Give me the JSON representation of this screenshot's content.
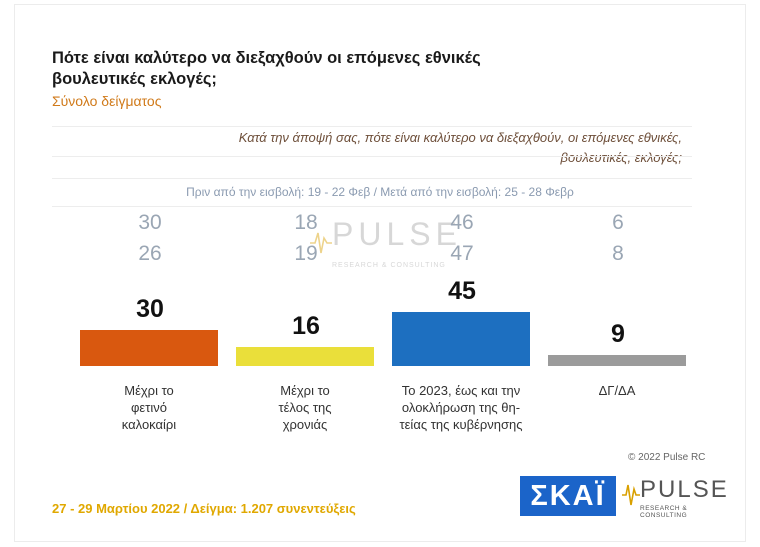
{
  "header": {
    "title": "Πότε είναι καλύτερο να διεξαχθούν οι επόμενες εθνικές βουλευτικές εκλογές;",
    "subtitle": "Σύνολο δείγματος"
  },
  "question": {
    "line1": "Κατά την άποψή σας, πότε είναι καλύτερο να διεξαχθούν, οι επόμενες εθνικές,",
    "line2": "βουλευτικές, εκλογές;"
  },
  "periods": {
    "before": "Πριν από την εισβολή: 19 - 22 Φεβ",
    "after": "Μετά από την εισβολή: 25 - 28 Φεβρ"
  },
  "chart_data": {
    "type": "bar",
    "categories": [
      "Μέχρι το φετινό καλοκαίρι",
      "Μέχρι το τέλος της χρονιάς",
      "Το 2023, έως και την ολοκλήρωση της θη-τείας της κυβέρνησης",
      "ΔΓ/ΔΑ"
    ],
    "category_lines": [
      [
        "Μέχρι το",
        "φετινό",
        "καλοκαίρι"
      ],
      [
        "Μέχρι το",
        "τέλος της",
        "χρονιάς"
      ],
      [
        "Το 2023, έως και την",
        "ολοκλήρωση της θη-",
        "τείας της κυβέρνησης"
      ],
      [
        "ΔΓ/ΔΑ"
      ]
    ],
    "series": [
      {
        "values": [
          30,
          16,
          45,
          9
        ]
      },
      {
        "name": "Πριν από την εισβολή: 19 - 22 Φεβ",
        "values": [
          30,
          18,
          46,
          6
        ]
      },
      {
        "name": "Μετά από την εισβολή: 25 - 28 Φεβρ",
        "values": [
          26,
          19,
          47,
          8
        ]
      }
    ],
    "colors": [
      "#d9580f",
      "#eadf3a",
      "#1d6fc0",
      "#9b9b9b"
    ],
    "ylim": [
      0,
      50
    ],
    "grid": true,
    "legend": "none"
  },
  "watermark": {
    "brand": "PULSE",
    "tagline": "RESEARCH & CONSULTING"
  },
  "copyright": "© 2022 Pulse RC",
  "footer": "27 - 29 Μαρτίου  2022  /  Δείγμα:  1.207 συνεντεύξεις",
  "logos": {
    "skai": "ΣΚΑΪ",
    "pulse": "PULSE",
    "pulse_tagline": "RESEARCH & CONSULTING"
  }
}
